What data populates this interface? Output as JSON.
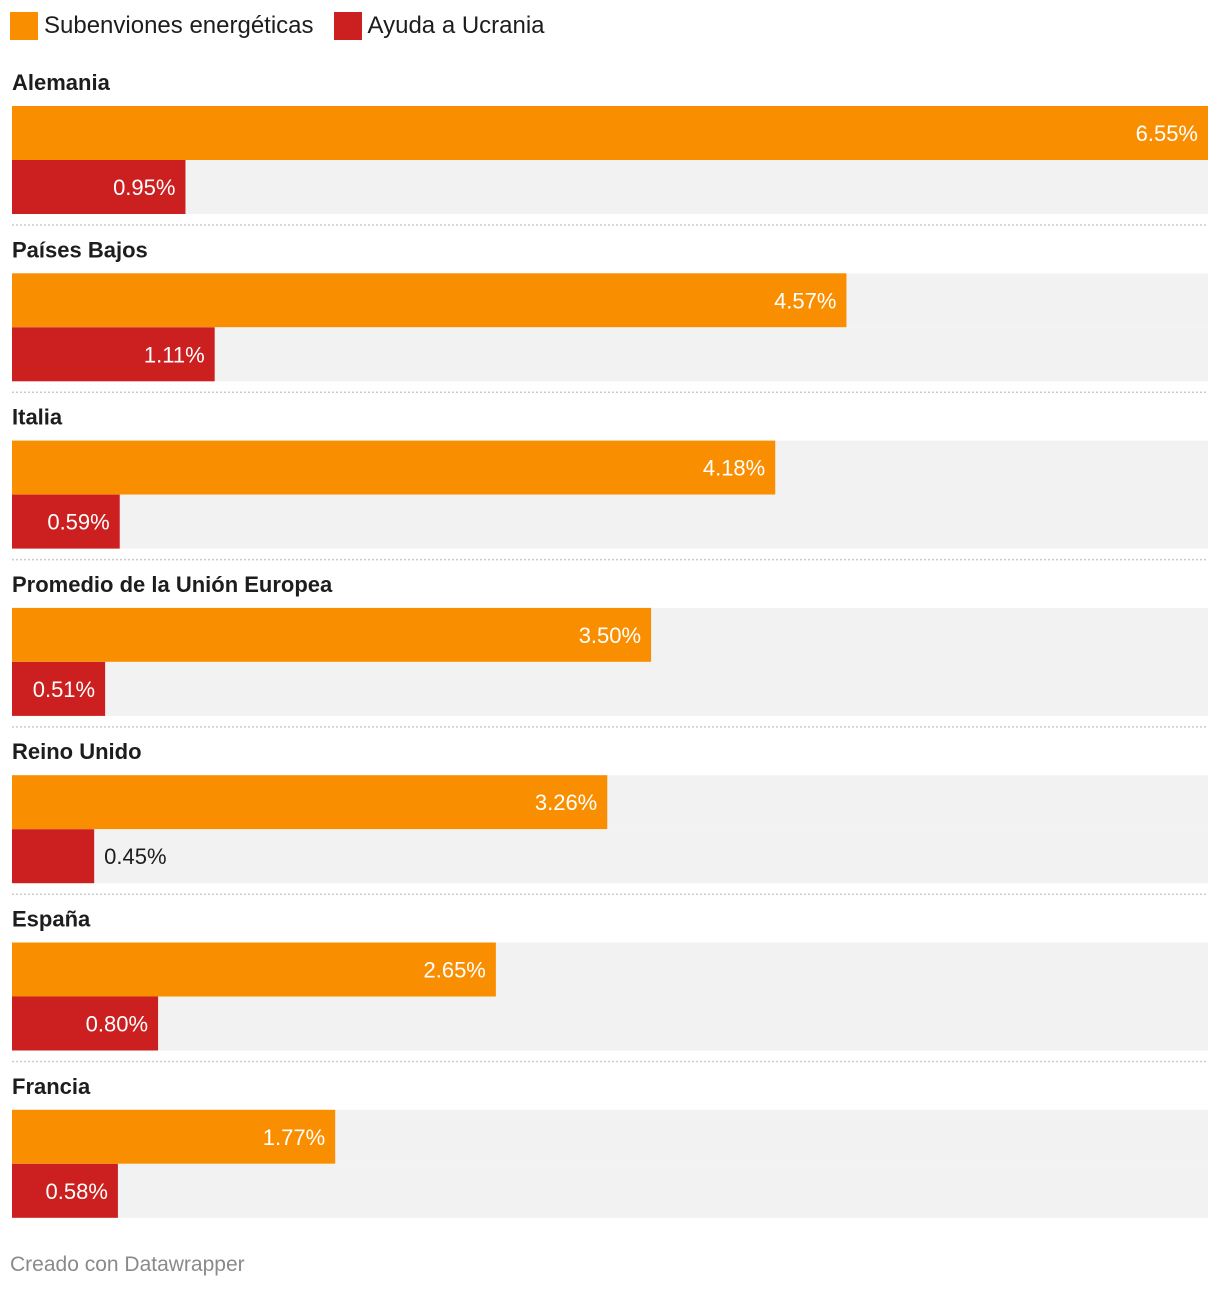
{
  "legend": {
    "items": [
      {
        "label": "Subenviones energéticas",
        "color": "#f98f00"
      },
      {
        "label": "Ayuda a Ucrania",
        "color": "#cc1f1f"
      }
    ]
  },
  "footer": {
    "credit": "Creado con Datawrapper"
  },
  "colors": {
    "track": "#f2f2f2",
    "separator": "#cccccc",
    "label_inside": "#ffffff",
    "label_outside": "#1d1d1d"
  },
  "chart_data": {
    "type": "bar",
    "orientation": "horizontal",
    "grouped": true,
    "value_suffix": "%",
    "xlim": [
      0,
      6.55
    ],
    "grid": false,
    "legend_position": "top-left",
    "categories": [
      "Alemania",
      "Países Bajos",
      "Italia",
      "Promedio de la Unión Europea",
      "Reino Unido",
      "España",
      "Francia"
    ],
    "series": [
      {
        "name": "Subenviones energéticas",
        "color": "#f98f00",
        "values": [
          6.55,
          4.57,
          4.18,
          3.5,
          3.26,
          2.65,
          1.77
        ],
        "labels": [
          "6.55%",
          "4.57%",
          "4.18%",
          "3.50%",
          "3.26%",
          "2.65%",
          "1.77%"
        ]
      },
      {
        "name": "Ayuda a Ucrania",
        "color": "#cc1f1f",
        "values": [
          0.95,
          1.11,
          0.59,
          0.51,
          0.45,
          0.8,
          0.58
        ],
        "labels": [
          "0.95%",
          "1.11%",
          "0.59%",
          "0.51%",
          "0.45%",
          "0.80%",
          "0.58%"
        ]
      }
    ]
  }
}
